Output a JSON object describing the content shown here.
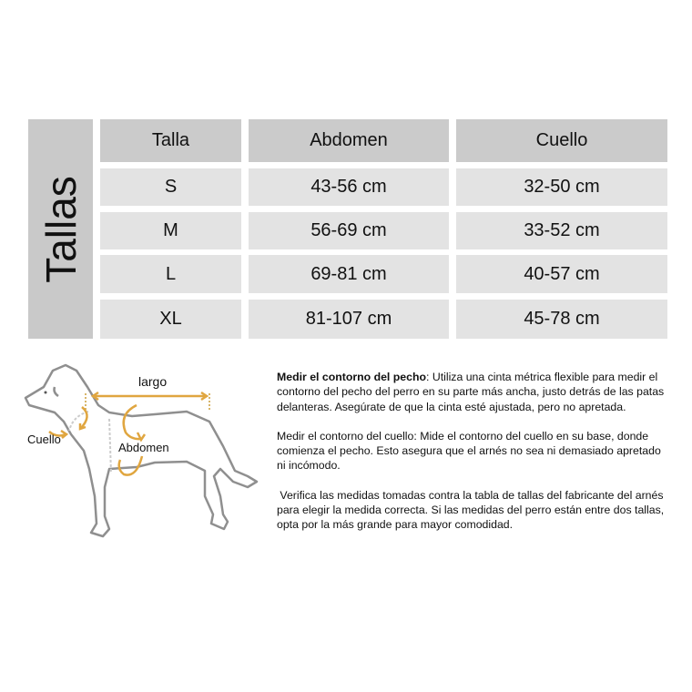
{
  "table": {
    "side_label": "Tallas",
    "headers": [
      "Talla",
      "Abdomen",
      "Cuello"
    ],
    "rows": [
      [
        "S",
        "43-56 cm",
        "32-50 cm"
      ],
      [
        "M",
        "56-69 cm",
        "33-52 cm"
      ],
      [
        "L",
        "69-81 cm",
        "40-57 cm"
      ],
      [
        "XL",
        "81-107 cm",
        "45-78 cm"
      ]
    ]
  },
  "diagram": {
    "labels": {
      "largo": "largo",
      "cuello": "Cuello",
      "abdomen": "Abdomen"
    },
    "accent_color": "#e0a640",
    "outline_color": "#8a8a8a"
  },
  "instructions": {
    "p1_bold": "Medir el contorno del pecho",
    "p1_rest": ": Utiliza una cinta métrica flexible para medir el contorno del pecho del perro en su parte más ancha, justo detrás de las patas delanteras. Asegúrate de que la cinta esté ajustada, pero no apretada.",
    "p2": "Medir el contorno del cuello: Mide el contorno del cuello en su base, donde comienza el pecho. Esto asegura que el arnés no sea ni demasiado apretado ni incómodo.",
    "p3": " Verifica las medidas tomadas contra la tabla de tallas del fabricante del arnés para elegir la medida correcta. Si las medidas del perro están entre dos tallas, opta por la más grande para mayor comodidad."
  }
}
